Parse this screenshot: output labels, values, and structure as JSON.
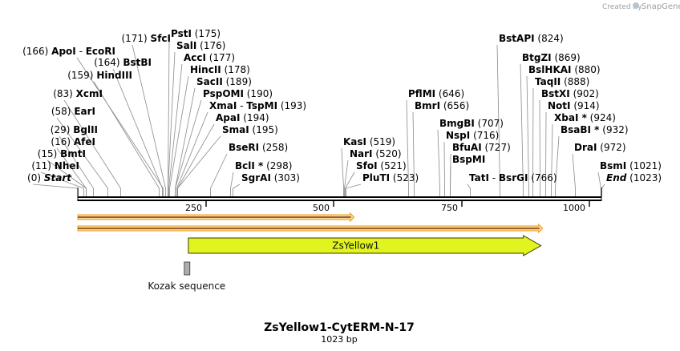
{
  "title": "ZsYellow1-CytERM-N-17",
  "length_label": "1023 bp",
  "credit": {
    "text": "Created by",
    "brand": "SnapGene"
  },
  "map": {
    "total_bp": 1023,
    "tick_labels": [
      "250",
      "500",
      "750",
      "1000"
    ]
  },
  "features": [
    {
      "name": "ZsYellow1",
      "start": 216,
      "end": 905,
      "color": "#e2f41f"
    },
    {
      "name": "Kozak sequence",
      "start": 208,
      "end": 217,
      "color": "#a9acb0"
    }
  ],
  "orfs": [
    {
      "start": 0,
      "end": 540,
      "color": "#ef9a1a"
    },
    {
      "start": 0,
      "end": 908,
      "color": "#ef9a1a"
    }
  ],
  "sites": [
    {
      "name": "Start",
      "pos": "(0)",
      "bp": 0,
      "italic": true
    },
    {
      "name": "NheI",
      "pos": "(11)",
      "bp": 11
    },
    {
      "name": "BmtI",
      "pos": "(15)",
      "bp": 15
    },
    {
      "name": "AfeI",
      "pos": "(16)",
      "bp": 16
    },
    {
      "name": "BglII",
      "pos": "(29)",
      "bp": 29
    },
    {
      "name": "EarI",
      "pos": "(58)",
      "bp": 58
    },
    {
      "name": "XcmI",
      "pos": "(83)",
      "bp": 83
    },
    {
      "name": "HindIII",
      "pos": "(159)",
      "bp": 159
    },
    {
      "name": "BstBI",
      "pos": "(164)",
      "bp": 164
    },
    {
      "name": "ApoI - EcoRI",
      "pos": "(166)",
      "bp": 166
    },
    {
      "name": "SfcI",
      "pos": "(171)",
      "bp": 171
    },
    {
      "name": "PstI",
      "pos": "(175)",
      "bp": 175
    },
    {
      "name": "SalI",
      "pos": "(176)",
      "bp": 176
    },
    {
      "name": "AccI",
      "pos": "(177)",
      "bp": 177
    },
    {
      "name": "HincII",
      "pos": "(178)",
      "bp": 178
    },
    {
      "name": "SacII",
      "pos": "(189)",
      "bp": 189
    },
    {
      "name": "PspOMI",
      "pos": "(190)",
      "bp": 190
    },
    {
      "name": "XmaI - TspMI",
      "pos": "(193)",
      "bp": 193
    },
    {
      "name": "ApaI",
      "pos": "(194)",
      "bp": 194
    },
    {
      "name": "SmaI",
      "pos": "(195)",
      "bp": 195
    },
    {
      "name": "BseRI",
      "pos": "(258)",
      "bp": 258
    },
    {
      "name": "BclI *",
      "pos": "(298)",
      "bp": 298
    },
    {
      "name": "SgrAI",
      "pos": "(303)",
      "bp": 303
    },
    {
      "name": "KasI",
      "pos": "(519)",
      "bp": 519
    },
    {
      "name": "NarI",
      "pos": "(520)",
      "bp": 520
    },
    {
      "name": "SfoI",
      "pos": "(521)",
      "bp": 521
    },
    {
      "name": "PluTI",
      "pos": "(523)",
      "bp": 523
    },
    {
      "name": "PflMI",
      "pos": "(646)",
      "bp": 646
    },
    {
      "name": "BmrI",
      "pos": "(656)",
      "bp": 656
    },
    {
      "name": "BmgBI",
      "pos": "(707)",
      "bp": 707
    },
    {
      "name": "NspI",
      "pos": "(716)",
      "bp": 716
    },
    {
      "name": "BfuAI",
      "pos": "(727)",
      "bp": 727
    },
    {
      "name": "BspMI",
      "pos": "",
      "bp": 727
    },
    {
      "name": "TatI - BsrGI",
      "pos": "(766)",
      "bp": 766
    },
    {
      "name": "BstAPI",
      "pos": "(824)",
      "bp": 824
    },
    {
      "name": "BtgZI",
      "pos": "(869)",
      "bp": 869
    },
    {
      "name": "BslHKAI",
      "pos": "(880)",
      "bp": 880
    },
    {
      "name": "TaqII",
      "pos": "(888)",
      "bp": 888
    },
    {
      "name": "BstXI",
      "pos": "(902)",
      "bp": 902
    },
    {
      "name": "NotI",
      "pos": "(914)",
      "bp": 914
    },
    {
      "name": "XbaI *",
      "pos": "(924)",
      "bp": 924
    },
    {
      "name": "BsaBI *",
      "pos": "(932)",
      "bp": 932
    },
    {
      "name": "DraI",
      "pos": "(972)",
      "bp": 972
    },
    {
      "name": "BsmI",
      "pos": "(1021)",
      "bp": 1021
    },
    {
      "name": "End",
      "pos": "(1023)",
      "bp": 1023,
      "italic": true
    }
  ]
}
